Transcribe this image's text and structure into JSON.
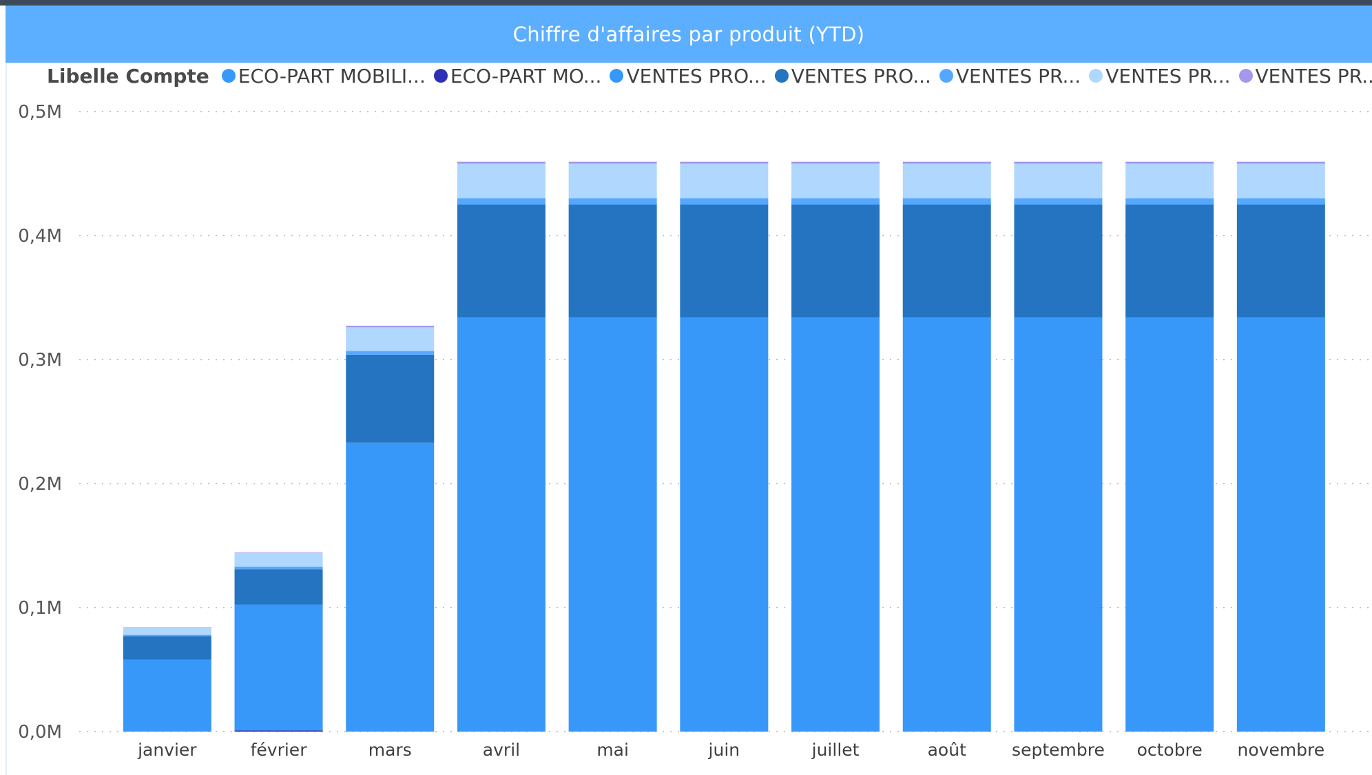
{
  "title": "Chiffre d'affaires par produit (YTD)",
  "legend": {
    "title": "Libelle Compte",
    "items": [
      {
        "label": "ECO-PART MOBILI...",
        "color": "#3798f9"
      },
      {
        "label": "ECO-PART MO...",
        "color": "#2d2fb4"
      },
      {
        "label": "VENTES PRO...",
        "color": "#3798f9"
      },
      {
        "label": "VENTES PRO...",
        "color": "#2574c1"
      },
      {
        "label": "VENTES PR...",
        "color": "#55a8ff"
      },
      {
        "label": "VENTES PR...",
        "color": "#b0d7fe"
      },
      {
        "label": "VENTES PR...",
        "color": "#a597ee"
      }
    ]
  },
  "chart_data": {
    "type": "bar",
    "stacked": true,
    "title": "Chiffre d'affaires par produit (YTD)",
    "xlabel": "",
    "ylabel": "",
    "ylim": [
      0,
      500000
    ],
    "yticks": [
      0,
      100000,
      200000,
      300000,
      400000,
      500000
    ],
    "ytick_labels": [
      "0,0M",
      "0,1M",
      "0,2M",
      "0,3M",
      "0,4M",
      "0,5M"
    ],
    "grid": true,
    "legend_position": "top-left",
    "categories": [
      "janvier",
      "février",
      "mars",
      "avril",
      "mai",
      "juin",
      "juillet",
      "août",
      "septembre",
      "octobre",
      "novembre"
    ],
    "series": [
      {
        "name": "ECO-PART MOBILI...",
        "color": "#3798f9",
        "values": [
          0,
          0,
          0,
          0,
          0,
          0,
          0,
          0,
          0,
          0,
          0
        ]
      },
      {
        "name": "ECO-PART MO...",
        "color": "#2d2fb4",
        "values": [
          0,
          1000,
          0,
          0,
          0,
          0,
          0,
          0,
          0,
          0,
          0
        ]
      },
      {
        "name": "VENTES PRO...",
        "color": "#3798f9",
        "values": [
          58000,
          101500,
          233000,
          334000,
          334000,
          334000,
          334000,
          334000,
          334000,
          334000,
          334000
        ]
      },
      {
        "name": "VENTES PRO...",
        "color": "#2574c1",
        "values": [
          19000,
          28500,
          71000,
          91000,
          91000,
          91000,
          91000,
          91000,
          91000,
          91000,
          91000
        ]
      },
      {
        "name": "VENTES PR...",
        "color": "#55a8ff",
        "values": [
          1000,
          2000,
          3000,
          5000,
          5000,
          5000,
          5000,
          5000,
          5000,
          5000,
          5000
        ]
      },
      {
        "name": "VENTES PR...",
        "color": "#b0d7fe",
        "values": [
          6000,
          11000,
          19000,
          28000,
          28000,
          28000,
          28000,
          28000,
          28000,
          28000,
          28000
        ]
      },
      {
        "name": "VENTES PR...",
        "color": "#a597ee",
        "values": [
          300,
          500,
          1300,
          1600,
          1600,
          1600,
          1600,
          1600,
          1600,
          1600,
          1600
        ]
      }
    ]
  }
}
